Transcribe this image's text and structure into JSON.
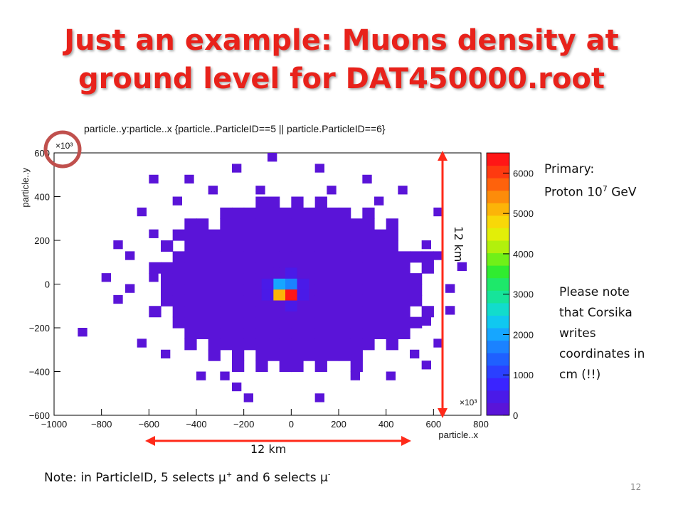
{
  "slide": {
    "title_line1": "Just an example: Muons density at",
    "title_line2": "ground level for DAT450000.root",
    "primary_label": "Primary:",
    "primary_value": "Proton 10",
    "primary_exp": "7",
    "primary_unit": " GeV",
    "note_lines": [
      "Please note",
      "that Corsika",
      "writes",
      "coordinates in",
      "cm (!!)"
    ],
    "bottom_note_prefix": "Note: in ParticleID, 5 selects μ",
    "bottom_note_sup1": "+",
    "bottom_note_mid": " and 6 selects μ",
    "bottom_note_sup2": "-",
    "km_horizontal": "12 km",
    "km_vertical": "12 km",
    "page_number": "12",
    "colors": {
      "title": "#e8221b",
      "arrow": "#ff2a1a",
      "circle": "#c0504d",
      "plot_fill": "#6a1bff"
    }
  },
  "chart_data": {
    "type": "heatmap",
    "title": "particle..y:particle..x {particle..ParticleID==5 || particle.ParticleID==6}",
    "xlabel": "particle..x",
    "ylabel": "particle..y",
    "x_multiplier": "×10³",
    "y_multiplier": "×10³",
    "xlim": [
      -1000,
      800
    ],
    "ylim": [
      -600,
      600
    ],
    "x_ticks": [
      -1000,
      -800,
      -600,
      -400,
      -200,
      0,
      200,
      400,
      600,
      800
    ],
    "y_ticks": [
      -600,
      -400,
      -200,
      0,
      200,
      400,
      600
    ],
    "x_tick_labels": [
      "−1000",
      "−800",
      "−600",
      "−400",
      "−200",
      "0",
      "200",
      "400",
      "600",
      "800"
    ],
    "y_tick_labels": [
      "−600",
      "−400",
      "−200",
      "0",
      "200",
      "400",
      "600"
    ],
    "colorbar": {
      "ticks": [
        0,
        1000,
        2000,
        3000,
        4000,
        5000,
        6000
      ],
      "tick_labels": [
        "0",
        "1000",
        "2000",
        "3000",
        "4000",
        "5000",
        "6000"
      ],
      "max": 6500,
      "colors": [
        "#5a14d8",
        "#4a1ae8",
        "#3a24ff",
        "#2b40ff",
        "#1f60ff",
        "#1b82ff",
        "#16a6ff",
        "#10c8f0",
        "#12dccc",
        "#16e49a",
        "#1ee86a",
        "#30ec30",
        "#70f018",
        "#b2f00c",
        "#e2ee08",
        "#f8d808",
        "#fcb408",
        "#fd8c0a",
        "#fe620c",
        "#fe3a10",
        "#ff1616"
      ]
    },
    "cell_size": 50,
    "core_cells": [
      {
        "x": -50,
        "y": 50,
        "value": 300
      },
      {
        "x": 0,
        "y": 50,
        "value": 450
      },
      {
        "x": 50,
        "y": 50,
        "value": 300
      },
      {
        "x": -100,
        "y": 0,
        "value": 400
      },
      {
        "x": -50,
        "y": 0,
        "value": 2000
      },
      {
        "x": 0,
        "y": 0,
        "value": 1800
      },
      {
        "x": 50,
        "y": 0,
        "value": 500
      },
      {
        "x": -100,
        "y": -50,
        "value": 400
      },
      {
        "x": -50,
        "y": -50,
        "value": 5200
      },
      {
        "x": 0,
        "y": -50,
        "value": 6500
      },
      {
        "x": 50,
        "y": -50,
        "value": 500
      },
      {
        "x": -50,
        "y": -100,
        "value": 300
      },
      {
        "x": 0,
        "y": -100,
        "value": 450
      }
    ],
    "sparse_cells": [
      {
        "x": -600,
        "y": 450
      },
      {
        "x": -450,
        "y": 450
      },
      {
        "x": -250,
        "y": 500
      },
      {
        "x": -100,
        "y": 550
      },
      {
        "x": 100,
        "y": 500
      },
      {
        "x": 300,
        "y": 450
      },
      {
        "x": 450,
        "y": 400
      },
      {
        "x": 600,
        "y": 300
      },
      {
        "x": 550,
        "y": 150
      },
      {
        "x": 600,
        "y": 100
      },
      {
        "x": 700,
        "y": 50
      },
      {
        "x": 650,
        "y": -50
      },
      {
        "x": 550,
        "y": -200
      },
      {
        "x": 600,
        "y": -300
      },
      {
        "x": 550,
        "y": -400
      },
      {
        "x": 400,
        "y": -450
      },
      {
        "x": 250,
        "y": -450
      },
      {
        "x": 100,
        "y": -550
      },
      {
        "x": -200,
        "y": -550
      },
      {
        "x": -250,
        "y": -500
      },
      {
        "x": -400,
        "y": -450
      },
      {
        "x": -550,
        "y": -350
      },
      {
        "x": -650,
        "y": -300
      },
      {
        "x": -900,
        "y": -250
      },
      {
        "x": -750,
        "y": -100
      },
      {
        "x": -800,
        "y": 0
      },
      {
        "x": -700,
        "y": 100
      },
      {
        "x": -750,
        "y": 150
      },
      {
        "x": -600,
        "y": 200
      },
      {
        "x": -650,
        "y": 300
      },
      {
        "x": -500,
        "y": 350
      },
      {
        "x": -350,
        "y": 400
      },
      {
        "x": -150,
        "y": 400
      },
      {
        "x": 150,
        "y": 400
      },
      {
        "x": 350,
        "y": 350
      },
      {
        "x": -700,
        "y": -50
      },
      {
        "x": 650,
        "y": -150
      },
      {
        "x": -600,
        "y": 0
      },
      {
        "x": 500,
        "y": -350
      },
      {
        "x": -300,
        "y": -450
      }
    ],
    "cloud_low_value": 1,
    "cloud_extent": {
      "x_min": -600,
      "x_max": 600,
      "y_min": -400,
      "y_max": 400
    }
  }
}
